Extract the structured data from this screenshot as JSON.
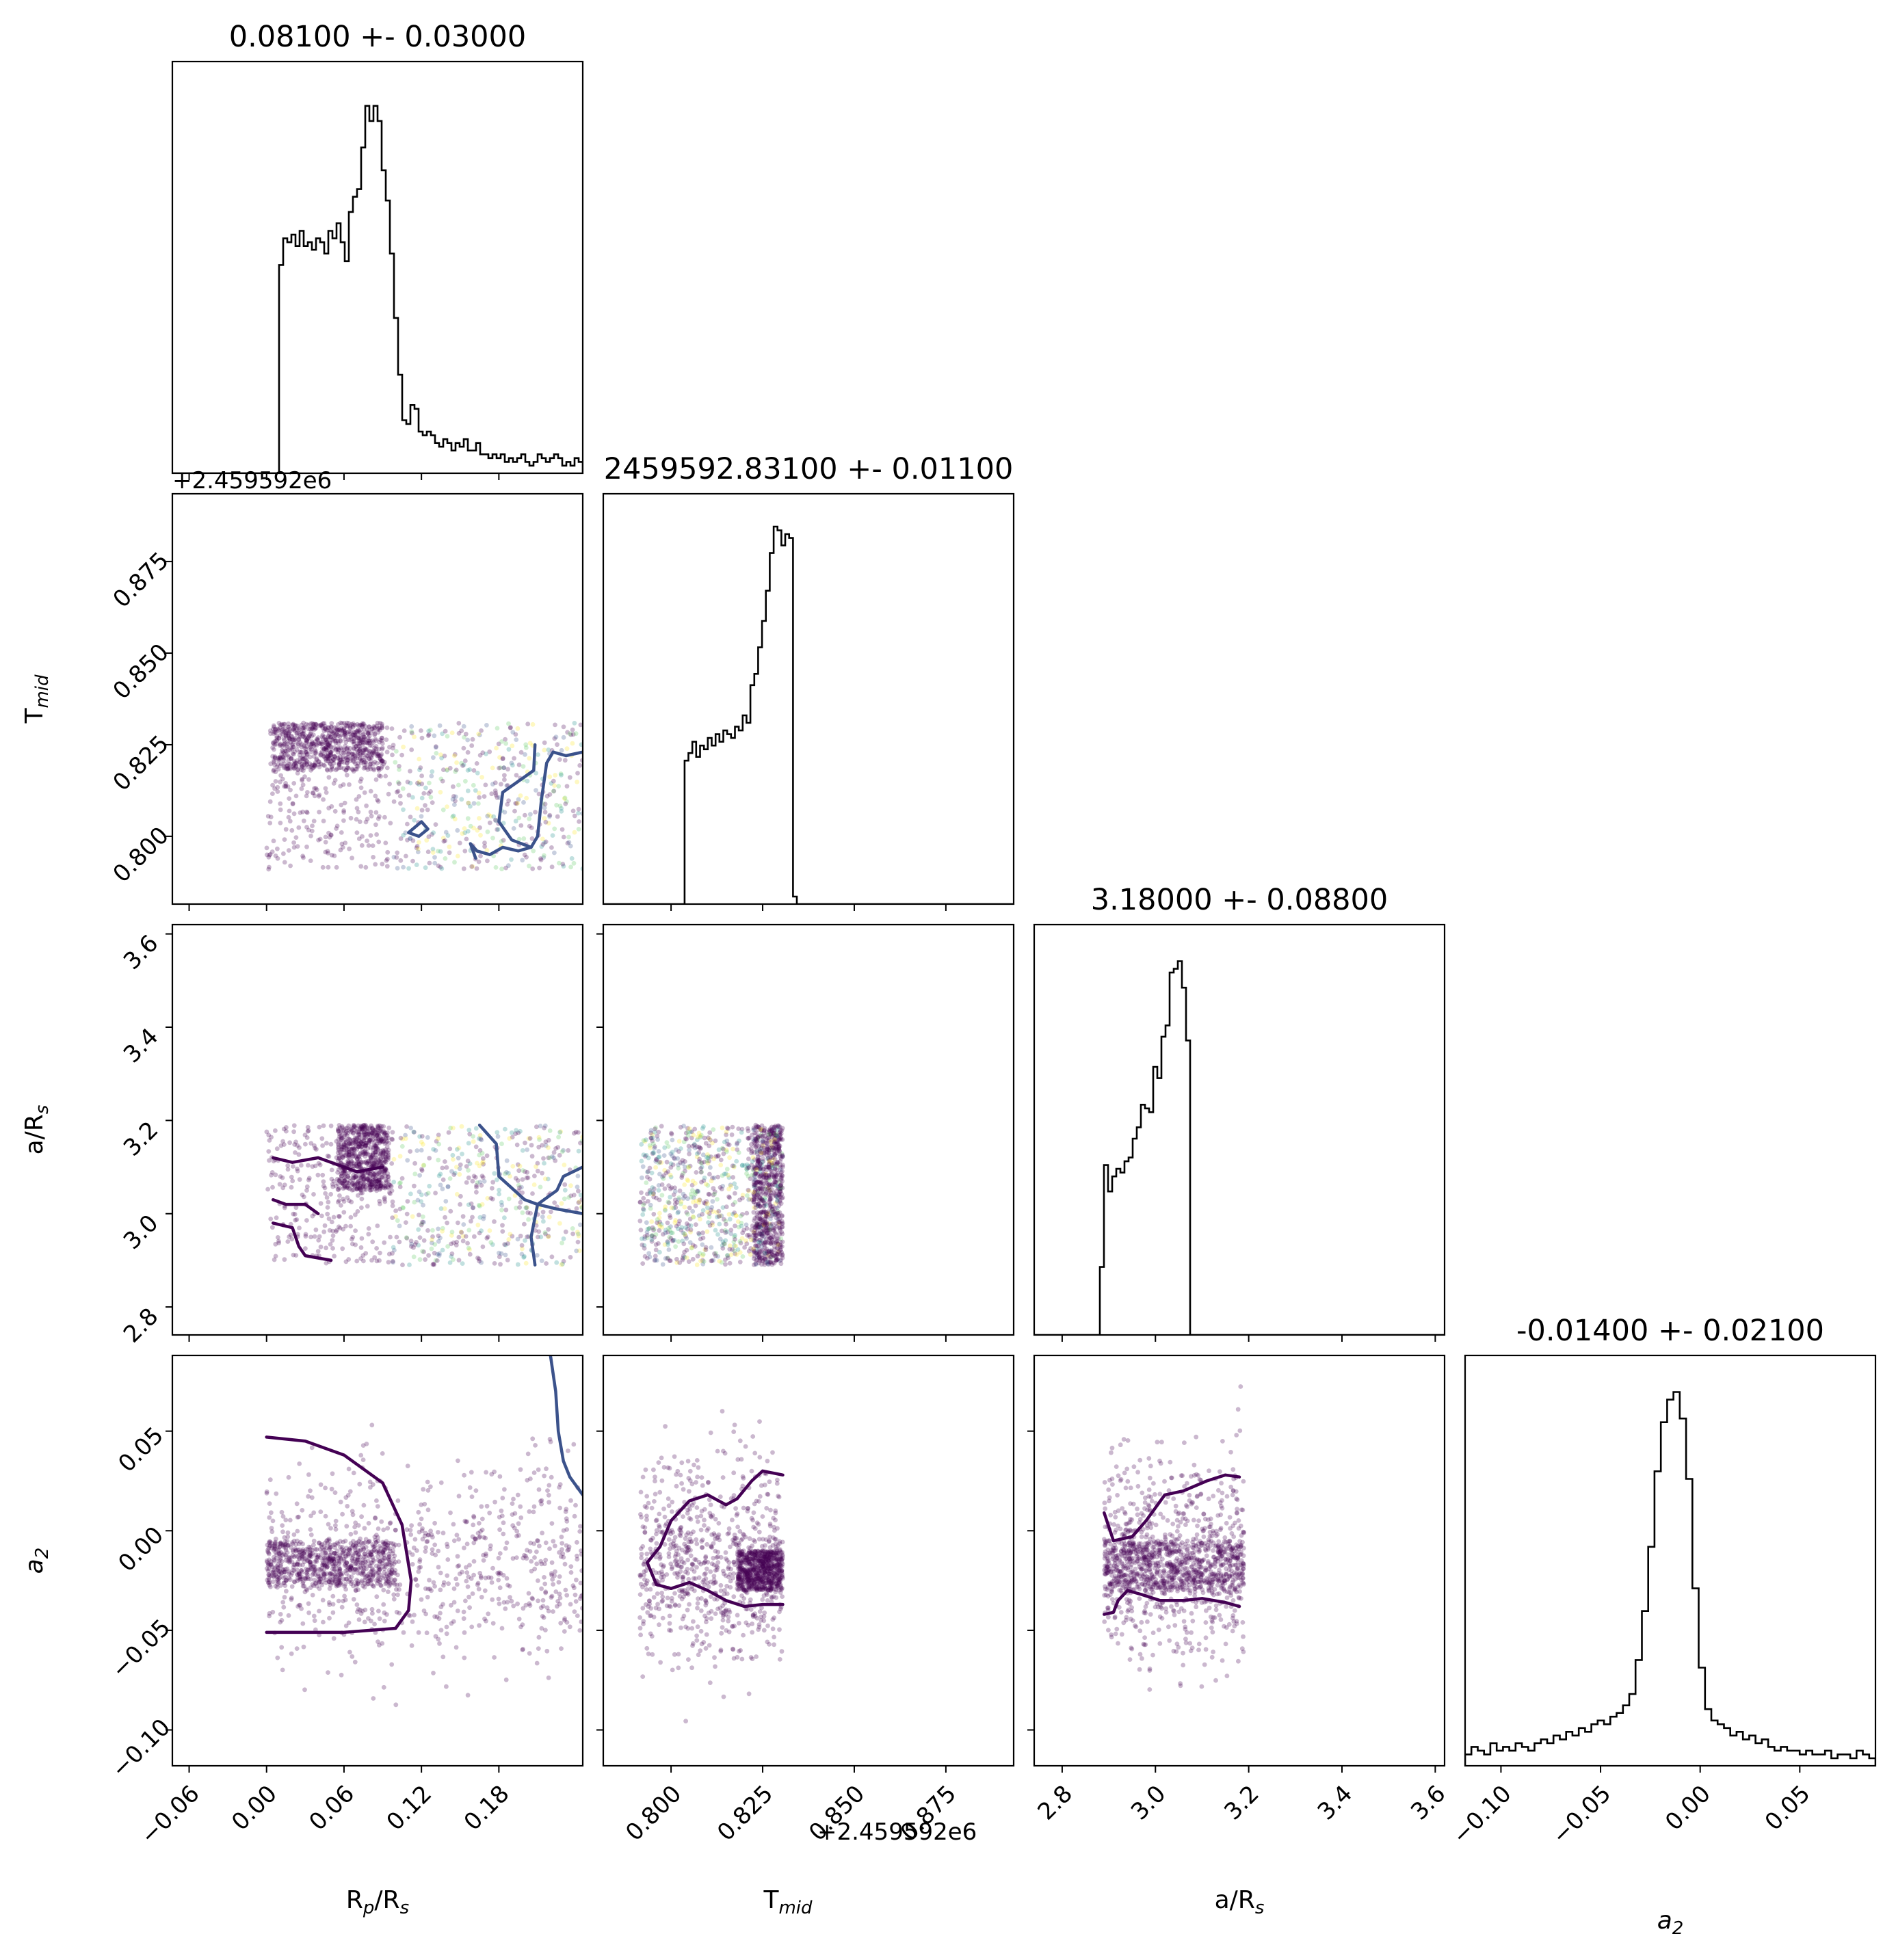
{
  "chart_data": {
    "type": "corner",
    "parameters": [
      {
        "key": "rp",
        "label_main": "R",
        "label_sub": "p",
        "label_sep": "/R",
        "label_sub2": "s",
        "title": "0.08100 +- 0.03000",
        "range": [
          -0.073,
          0.245
        ],
        "ticks": [
          -0.06,
          0.0,
          0.06,
          0.12,
          0.18
        ],
        "tick_labels": [
          "−0.06",
          "0.00",
          "0.06",
          "0.12",
          "0.18"
        ],
        "hist": [
          0,
          0,
          0,
          0,
          0,
          0,
          0,
          0,
          0,
          0,
          0,
          0,
          0,
          0,
          0,
          0,
          0,
          0,
          0,
          0,
          0,
          0,
          0,
          0,
          0,
          0,
          0.55,
          0.62,
          0.61,
          0.63,
          0.6,
          0.64,
          0.6,
          0.61,
          0.59,
          0.62,
          0.61,
          0.58,
          0.64,
          0.62,
          0.66,
          0.61,
          0.56,
          0.69,
          0.73,
          0.75,
          0.86,
          0.97,
          0.93,
          0.97,
          0.93,
          0.8,
          0.72,
          0.58,
          0.41,
          0.26,
          0.14,
          0.13,
          0.18,
          0.17,
          0.11,
          0.1,
          0.11,
          0.1,
          0.08,
          0.07,
          0.09,
          0.08,
          0.06,
          0.08,
          0.07,
          0.09,
          0.06,
          0.06,
          0.08,
          0.05,
          0.05,
          0.04,
          0.05,
          0.04,
          0.05,
          0.03,
          0.04,
          0.03,
          0.04,
          0.05,
          0.03,
          0.02,
          0.03,
          0.05,
          0.04,
          0.03,
          0.04,
          0.05,
          0.04,
          0.02,
          0.03,
          0.02,
          0.04,
          0.03
        ],
        "offset_text": "+2.459592e6"
      },
      {
        "key": "tmid",
        "label_main": "T",
        "label_sub": "mid",
        "title": "2459592.83100 +- 0.01100",
        "range": [
          0.7815,
          0.8935
        ],
        "ticks": [
          0.8,
          0.825,
          0.85,
          0.875
        ],
        "tick_labels": [
          "0.800",
          "0.825",
          "0.850",
          "0.875"
        ],
        "hist": [
          0,
          0,
          0,
          0,
          0,
          0,
          0,
          0,
          0,
          0,
          0,
          0,
          0,
          0,
          0,
          0,
          0,
          0,
          0,
          0,
          0,
          0.38,
          0.4,
          0.43,
          0.39,
          0.42,
          0.41,
          0.44,
          0.42,
          0.45,
          0.43,
          0.46,
          0.45,
          0.44,
          0.47,
          0.46,
          0.5,
          0.48,
          0.58,
          0.61,
          0.68,
          0.75,
          0.83,
          0.93,
          1.0,
          0.99,
          0.95,
          0.98,
          0.97,
          0.02,
          0,
          0,
          0,
          0,
          0,
          0,
          0,
          0,
          0,
          0,
          0,
          0,
          0,
          0,
          0,
          0,
          0,
          0,
          0,
          0,
          0,
          0,
          0,
          0,
          0,
          0,
          0,
          0,
          0,
          0,
          0,
          0,
          0,
          0,
          0,
          0,
          0,
          0,
          0,
          0,
          0,
          0,
          0,
          0,
          0,
          0,
          0,
          0,
          0,
          0,
          0,
          0,
          0,
          0,
          0,
          0
        ],
        "offset_text": "+2.459592e6",
        "y_ticks": [
          0.8,
          0.825,
          0.85,
          0.875
        ],
        "y_tick_labels": [
          "0.800",
          "0.825",
          "0.850",
          "0.875"
        ]
      },
      {
        "key": "ars",
        "label_main": "a/R",
        "label_sub": "s",
        "title": "3.18000 +- 0.08800",
        "range": [
          2.74,
          3.62
        ],
        "ticks": [
          2.8,
          3.0,
          3.2,
          3.4,
          3.6
        ],
        "tick_labels": [
          "2.8",
          "3.0",
          "3.2",
          "3.4",
          "3.6"
        ],
        "hist": [
          0,
          0,
          0,
          0,
          0,
          0,
          0,
          0,
          0,
          0,
          0,
          0,
          0,
          0,
          0,
          0,
          0.18,
          0.45,
          0.38,
          0.42,
          0.44,
          0.43,
          0.46,
          0.47,
          0.52,
          0.55,
          0.61,
          0.6,
          0.59,
          0.71,
          0.68,
          0.79,
          0.82,
          0.96,
          0.97,
          0.99,
          0.92,
          0.78,
          0,
          0,
          0,
          0,
          0,
          0,
          0,
          0,
          0,
          0,
          0,
          0,
          0,
          0,
          0,
          0,
          0,
          0,
          0,
          0,
          0,
          0,
          0,
          0,
          0,
          0,
          0,
          0,
          0,
          0,
          0,
          0,
          0,
          0,
          0,
          0,
          0,
          0,
          0,
          0,
          0,
          0,
          0,
          0,
          0,
          0,
          0,
          0,
          0,
          0,
          0,
          0,
          0,
          0,
          0,
          0,
          0,
          0,
          0,
          0,
          0,
          0
        ],
        "y_ticks": [
          2.8,
          3.0,
          3.2,
          3.4,
          3.6
        ],
        "y_tick_labels": [
          "2.8",
          "3.0",
          "3.2",
          "3.4",
          "3.6"
        ]
      },
      {
        "key": "a2",
        "label_main": "a",
        "label_sub": "2",
        "italic": true,
        "title": "-0.01400 +- 0.02100",
        "range": [
          -0.118,
          0.088
        ],
        "ticks": [
          -0.1,
          -0.05,
          0.0,
          0.05
        ],
        "tick_labels": [
          "−0.10",
          "−0.05",
          "0.00",
          "0.05"
        ],
        "hist": [
          0.03,
          0.05,
          0.04,
          0.03,
          0.06,
          0.04,
          0.05,
          0.04,
          0.06,
          0.05,
          0.04,
          0.06,
          0.07,
          0.06,
          0.08,
          0.07,
          0.09,
          0.08,
          0.1,
          0.09,
          0.11,
          0.12,
          0.11,
          0.13,
          0.14,
          0.16,
          0.19,
          0.28,
          0.41,
          0.58,
          0.78,
          0.91,
          0.97,
          0.99,
          0.92,
          0.76,
          0.47,
          0.26,
          0.15,
          0.12,
          0.11,
          0.1,
          0.08,
          0.09,
          0.07,
          0.08,
          0.06,
          0.07,
          0.05,
          0.04,
          0.05,
          0.04,
          0.04,
          0.03,
          0.04,
          0.03,
          0.03,
          0.04,
          0.02,
          0.03,
          0.03,
          0.02,
          0.04,
          0.03,
          0.02
        ],
        "y_ticks": [
          -0.1,
          -0.05,
          0.0,
          0.05
        ],
        "y_tick_labels": [
          "−0.10",
          "−0.05",
          "0.00",
          "0.05"
        ]
      }
    ],
    "scatter": [
      {
        "row": 1,
        "col": 0,
        "x_range": [
          0.0,
          0.245
        ],
        "y_range": [
          0.791,
          0.831
        ],
        "dense_x": [
          0.005,
          0.09
        ],
        "dense_y": [
          0.818,
          0.831
        ]
      },
      {
        "row": 2,
        "col": 0,
        "x_range": [
          0.0,
          0.245
        ],
        "y_range": [
          2.89,
          3.19
        ],
        "dense_x": [
          0.055,
          0.095
        ],
        "dense_y": [
          3.05,
          3.19
        ]
      },
      {
        "row": 2,
        "col": 1,
        "x_range": [
          0.7915,
          0.8305
        ],
        "y_range": [
          2.89,
          3.19
        ],
        "dense_x": [
          0.8225,
          0.8305
        ],
        "dense_y": [
          2.89,
          3.19
        ]
      },
      {
        "row": 3,
        "col": 0,
        "x_range": [
          0.0,
          0.245
        ],
        "y_range": [
          -0.118,
          0.088
        ],
        "dense_x": [
          0.0,
          0.1
        ],
        "dense_y": [
          -0.028,
          -0.005
        ]
      },
      {
        "row": 3,
        "col": 1,
        "x_range": [
          0.7915,
          0.8305
        ],
        "y_range": [
          -0.118,
          0.088
        ],
        "dense_x": [
          0.818,
          0.8305
        ],
        "dense_y": [
          -0.03,
          -0.01
        ]
      },
      {
        "row": 3,
        "col": 2,
        "x_range": [
          2.89,
          3.19
        ],
        "y_range": [
          -0.118,
          0.088
        ],
        "dense_x": [
          2.89,
          3.19
        ],
        "dense_y": [
          -0.03,
          -0.005
        ]
      }
    ],
    "contours": [
      {
        "row": 1,
        "col": 0,
        "color": "#3b528b",
        "paths": [
          [
            [
              0.208,
              0.825
            ],
            [
              0.207,
              0.818
            ],
            [
              0.195,
              0.815
            ],
            [
              0.183,
              0.812
            ],
            [
              0.18,
              0.804
            ],
            [
              0.19,
              0.799
            ],
            [
              0.205,
              0.797
            ],
            [
              0.21,
              0.8
            ],
            [
              0.213,
              0.81
            ],
            [
              0.217,
              0.82
            ],
            [
              0.222,
              0.823
            ],
            [
              0.232,
              0.822
            ],
            [
              0.245,
              0.823
            ]
          ],
          [
            [
              0.205,
              0.797
            ],
            [
              0.195,
              0.796
            ],
            [
              0.183,
              0.797
            ],
            [
              0.173,
              0.795
            ],
            [
              0.163,
              0.796
            ],
            [
              0.158,
              0.798
            ],
            [
              0.162,
              0.794
            ]
          ],
          [
            [
              0.11,
              0.801
            ],
            [
              0.118,
              0.8
            ],
            [
              0.125,
              0.802
            ],
            [
              0.12,
              0.804
            ],
            [
              0.11,
              0.801
            ]
          ]
        ]
      },
      {
        "row": 2,
        "col": 0,
        "color": "#3b528b",
        "paths": [
          [
            [
              0.165,
              3.19
            ],
            [
              0.178,
              3.15
            ],
            [
              0.18,
              3.08
            ],
            [
              0.188,
              3.06
            ],
            [
              0.2,
              3.03
            ],
            [
              0.21,
              3.02
            ],
            [
              0.225,
              3.01
            ],
            [
              0.245,
              3.0
            ]
          ],
          [
            [
              0.245,
              3.1
            ],
            [
              0.23,
              3.08
            ],
            [
              0.225,
              3.05
            ],
            [
              0.21,
              3.02
            ],
            [
              0.205,
              2.95
            ],
            [
              0.208,
              2.89
            ]
          ]
        ]
      },
      {
        "row": 2,
        "col": 0,
        "color": "#440154",
        "paths": [
          [
            [
              0.005,
              3.12
            ],
            [
              0.02,
              3.11
            ],
            [
              0.04,
              3.12
            ],
            [
              0.07,
              3.09
            ],
            [
              0.09,
              3.1
            ]
          ],
          [
            [
              0.005,
              3.03
            ],
            [
              0.015,
              3.02
            ],
            [
              0.03,
              3.02
            ],
            [
              0.04,
              3.0
            ]
          ],
          [
            [
              0.005,
              2.98
            ],
            [
              0.02,
              2.97
            ],
            [
              0.025,
              2.93
            ],
            [
              0.03,
              2.91
            ],
            [
              0.05,
              2.9
            ]
          ]
        ]
      },
      {
        "row": 3,
        "col": 0,
        "color": "#440154",
        "paths": [
          [
            [
              0.0,
              0.047
            ],
            [
              0.03,
              0.045
            ],
            [
              0.06,
              0.038
            ],
            [
              0.09,
              0.024
            ],
            [
              0.105,
              0.003
            ],
            [
              0.112,
              -0.025
            ],
            [
              0.11,
              -0.04
            ],
            [
              0.1,
              -0.049
            ],
            [
              0.06,
              -0.051
            ],
            [
              0.0,
              -0.051
            ]
          ]
        ]
      },
      {
        "row": 3,
        "col": 0,
        "color": "#3b528b",
        "paths": [
          [
            [
              0.22,
              0.088
            ],
            [
              0.224,
              0.07
            ],
            [
              0.226,
              0.05
            ],
            [
              0.23,
              0.035
            ],
            [
              0.235,
              0.027
            ],
            [
              0.245,
              0.018
            ]
          ]
        ]
      },
      {
        "row": 3,
        "col": 1,
        "color": "#440154",
        "paths": [
          [
            [
              0.7935,
              -0.016
            ],
            [
              0.797,
              -0.008
            ],
            [
              0.8,
              0.005
            ],
            [
              0.805,
              0.015
            ],
            [
              0.81,
              0.018
            ],
            [
              0.815,
              0.013
            ],
            [
              0.818,
              0.016
            ],
            [
              0.822,
              0.025
            ],
            [
              0.825,
              0.03
            ],
            [
              0.8305,
              0.028
            ]
          ],
          [
            [
              0.7935,
              -0.016
            ],
            [
              0.796,
              -0.027
            ],
            [
              0.8,
              -0.029
            ],
            [
              0.805,
              -0.026
            ],
            [
              0.81,
              -0.03
            ],
            [
              0.815,
              -0.035
            ],
            [
              0.82,
              -0.038
            ],
            [
              0.825,
              -0.037
            ],
            [
              0.8305,
              -0.037
            ]
          ]
        ]
      },
      {
        "row": 3,
        "col": 2,
        "color": "#440154",
        "paths": [
          [
            [
              2.89,
              0.009
            ],
            [
              2.91,
              -0.005
            ],
            [
              2.95,
              -0.003
            ],
            [
              2.98,
              0.005
            ],
            [
              3.02,
              0.018
            ],
            [
              3.06,
              0.02
            ],
            [
              3.11,
              0.025
            ],
            [
              3.15,
              0.028
            ],
            [
              3.18,
              0.027
            ]
          ],
          [
            [
              2.89,
              -0.042
            ],
            [
              2.91,
              -0.041
            ],
            [
              2.92,
              -0.035
            ],
            [
              2.94,
              -0.03
            ],
            [
              2.97,
              -0.032
            ],
            [
              3.01,
              -0.035
            ],
            [
              3.06,
              -0.035
            ],
            [
              3.1,
              -0.034
            ],
            [
              3.15,
              -0.036
            ],
            [
              3.18,
              -0.038
            ]
          ]
        ]
      }
    ],
    "colors": {
      "scatter_dark": "#440154",
      "scatter_mid": "#3b528b",
      "scatter_teal": "#21918c",
      "scatter_green": "#5ec962",
      "scatter_yellow": "#fde725",
      "hist_line": "#000000"
    }
  }
}
